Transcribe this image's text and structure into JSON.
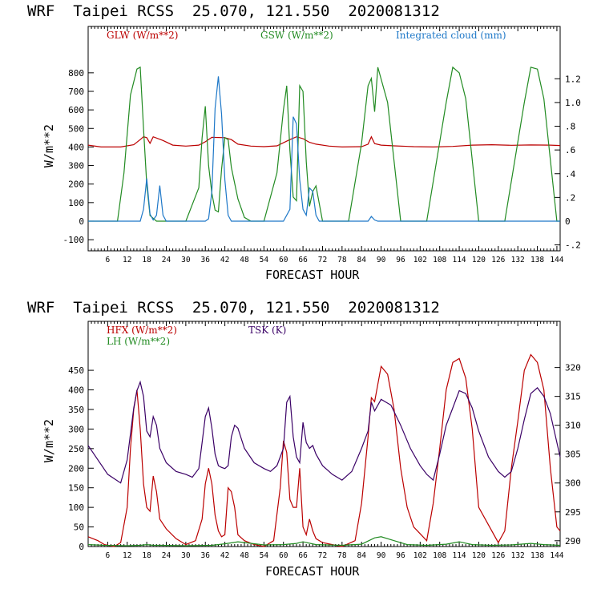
{
  "colors": {
    "glw": "#bb0000",
    "gsw": "#228b22",
    "cloud": "#1e78c8",
    "hfx": "#bb0000",
    "lh": "#228b22",
    "tsk": "#3a0066",
    "grid": "#000000"
  },
  "chart_data": [
    {
      "type": "line",
      "title": "WRF  Taipei RCSS  25.070, 121.550  2020081312",
      "xlabel": "FORECAST HOUR",
      "ylabel": "W/m**2",
      "xlim": [
        0,
        145
      ],
      "ylim": [
        -160,
        1050
      ],
      "xticks": [
        "6",
        "12",
        "18",
        "24",
        "30",
        "36",
        "42",
        "48",
        "54",
        "60",
        "66",
        "72",
        "78",
        "84",
        "90",
        "96",
        "102",
        "108",
        "114",
        "120",
        "126",
        "132",
        "138",
        "144"
      ],
      "yticks": [
        "-100",
        "0",
        "100",
        "200",
        "300",
        "400",
        "500",
        "600",
        "700",
        "800"
      ],
      "y2label": "Integrated cloud (mm)",
      "y2lim": [
        -0.25,
        1.641
      ],
      "y2ticks": [
        "-.2",
        "0",
        ".2",
        ".4",
        ".6",
        ".8",
        "1.0",
        "1.2"
      ],
      "legend": [
        "GLW (W/m**2)",
        "GSW (W/m**2)",
        "Integrated cloud (mm)"
      ],
      "series": [
        {
          "name": "GLW (W/m**2)",
          "axis": "left",
          "x": [
            0,
            4,
            10,
            14,
            16,
            17,
            18,
            19,
            20,
            23,
            26,
            30,
            34,
            36,
            38,
            42,
            44,
            46,
            50,
            54,
            58,
            62,
            64,
            66,
            68,
            70,
            74,
            78,
            84,
            86,
            87,
            88,
            90,
            94,
            100,
            106,
            112,
            118,
            124,
            130,
            136,
            142,
            145
          ],
          "y": [
            410,
            400,
            400,
            412,
            440,
            455,
            450,
            420,
            455,
            435,
            410,
            405,
            410,
            428,
            452,
            450,
            440,
            415,
            405,
            402,
            406,
            440,
            455,
            445,
            425,
            415,
            405,
            400,
            402,
            415,
            455,
            418,
            410,
            406,
            402,
            400,
            403,
            410,
            412,
            409,
            411,
            410,
            408
          ]
        },
        {
          "name": "GSW (W/m**2)",
          "axis": "left",
          "x": [
            0,
            9,
            11,
            13,
            15,
            16,
            17,
            18,
            19,
            21,
            24,
            30,
            34,
            35,
            36,
            37,
            38,
            39,
            40,
            41,
            42,
            43,
            44,
            46,
            48,
            50,
            54,
            58,
            60,
            61,
            62,
            63,
            64,
            65,
            66,
            67,
            68,
            69,
            70,
            72,
            80,
            84,
            86,
            87,
            88,
            89,
            92,
            96,
            104,
            110,
            112,
            114,
            116,
            120,
            128,
            134,
            136,
            138,
            140,
            144,
            145
          ],
          "y": [
            0,
            0,
            260,
            680,
            820,
            830,
            500,
            200,
            30,
            0,
            0,
            0,
            180,
            450,
            620,
            300,
            150,
            60,
            50,
            280,
            450,
            440,
            290,
            120,
            20,
            0,
            0,
            260,
            600,
            730,
            380,
            130,
            110,
            730,
            700,
            320,
            80,
            160,
            190,
            0,
            0,
            420,
            730,
            770,
            590,
            830,
            640,
            0,
            0,
            640,
            830,
            800,
            660,
            0,
            0,
            640,
            830,
            820,
            660,
            0,
            0
          ]
        },
        {
          "name": "Integrated cloud (mm)",
          "axis": "right",
          "x": [
            0,
            16,
            17,
            18,
            19,
            20,
            21,
            22,
            23,
            24,
            25,
            36,
            37,
            38,
            39,
            40,
            41,
            42,
            43,
            44,
            45,
            60,
            62,
            63,
            64,
            65,
            66,
            67,
            68,
            69,
            70,
            71,
            86,
            87,
            88,
            89,
            145
          ],
          "y": [
            0,
            0,
            0.1,
            0.36,
            0.06,
            0.01,
            0.05,
            0.3,
            0.05,
            0,
            0,
            0,
            0.02,
            0.25,
            0.95,
            1.22,
            0.9,
            0.35,
            0.05,
            0,
            0,
            0,
            0.1,
            0.88,
            0.82,
            0.35,
            0.1,
            0.05,
            0.28,
            0.25,
            0.05,
            0,
            0,
            0.04,
            0.01,
            0,
            0
          ]
        }
      ]
    },
    {
      "type": "line",
      "title": "WRF  Taipei RCSS  25.070, 121.550  2020081312",
      "xlabel": "FORECAST HOUR",
      "ylabel": "W/m**2",
      "xlim": [
        0,
        145
      ],
      "ylim": [
        0,
        575
      ],
      "xticks": [
        "6",
        "12",
        "18",
        "24",
        "30",
        "36",
        "42",
        "48",
        "54",
        "60",
        "66",
        "72",
        "78",
        "84",
        "90",
        "96",
        "102",
        "108",
        "114",
        "120",
        "126",
        "132",
        "138",
        "144"
      ],
      "yticks": [
        "0",
        "50",
        "100",
        "150",
        "200",
        "250",
        "300",
        "350",
        "400",
        "450"
      ],
      "y2label": "TSK (K)",
      "y2lim": [
        289.0,
        328.0
      ],
      "y2ticks": [
        "290",
        "295",
        "300",
        "305",
        "310",
        "315",
        "320"
      ],
      "legend": [
        "HFX (W/m**2)",
        "LH (W/m**2)",
        "TSK (K)"
      ],
      "series": [
        {
          "name": "HFX (W/m**2)",
          "axis": "left",
          "x": [
            0,
            3,
            5,
            8,
            10,
            12,
            13,
            14,
            15,
            16,
            17,
            18,
            19,
            20,
            21,
            22,
            24,
            27,
            30,
            33,
            35,
            36,
            37,
            38,
            39,
            40,
            41,
            42,
            43,
            44,
            45,
            46,
            48,
            51,
            54,
            57,
            59,
            60,
            61,
            62,
            63,
            64,
            65,
            66,
            67,
            68,
            69,
            70,
            72,
            75,
            78,
            82,
            84,
            86,
            87,
            88,
            90,
            92,
            94,
            96,
            98,
            100,
            104,
            106,
            108,
            110,
            112,
            114,
            116,
            118,
            120,
            126,
            128,
            130,
            132,
            134,
            136,
            138,
            140,
            142,
            144,
            145
          ],
          "y": [
            25,
            15,
            5,
            0,
            10,
            100,
            250,
            350,
            400,
            300,
            160,
            100,
            90,
            180,
            140,
            70,
            45,
            20,
            5,
            15,
            70,
            160,
            200,
            160,
            80,
            40,
            25,
            30,
            150,
            140,
            100,
            30,
            15,
            5,
            0,
            15,
            150,
            270,
            240,
            120,
            100,
            100,
            200,
            50,
            30,
            70,
            40,
            20,
            10,
            5,
            0,
            15,
            110,
            280,
            380,
            370,
            460,
            440,
            350,
            200,
            100,
            50,
            15,
            110,
            250,
            400,
            470,
            480,
            430,
            300,
            100,
            10,
            40,
            200,
            320,
            450,
            490,
            470,
            400,
            200,
            50,
            40
          ]
        },
        {
          "name": "LH (W/m**2)",
          "axis": "left",
          "x": [
            0,
            5,
            12,
            16,
            18,
            20,
            22,
            30,
            38,
            42,
            46,
            54,
            60,
            64,
            66,
            70,
            78,
            84,
            88,
            90,
            94,
            98,
            104,
            110,
            114,
            118,
            124,
            130,
            136,
            140,
            145
          ],
          "y": [
            5,
            3,
            2,
            3,
            5,
            3,
            3,
            2,
            3,
            7,
            12,
            4,
            5,
            8,
            12,
            5,
            3,
            6,
            22,
            25,
            15,
            5,
            3,
            6,
            12,
            5,
            3,
            4,
            8,
            5,
            3
          ]
        },
        {
          "name": "TSK (K)",
          "axis": "right",
          "x": [
            0,
            3,
            6,
            10,
            12,
            14,
            15,
            16,
            17,
            18,
            19,
            20,
            21,
            22,
            24,
            27,
            30,
            32,
            34,
            35,
            36,
            37,
            38,
            39,
            40,
            41,
            42,
            43,
            44,
            45,
            46,
            48,
            51,
            54,
            56,
            58,
            60,
            61,
            62,
            63,
            64,
            65,
            66,
            67,
            68,
            69,
            70,
            72,
            75,
            78,
            81,
            84,
            86,
            87,
            88,
            90,
            93,
            96,
            99,
            102,
            104,
            106,
            108,
            110,
            112,
            114,
            116,
            118,
            120,
            123,
            126,
            128,
            130,
            132,
            134,
            136,
            138,
            140,
            142,
            145
          ],
          "y": [
            306.5,
            304,
            301.5,
            300,
            304,
            313,
            316,
            317.5,
            315,
            309,
            308,
            311.5,
            310,
            306,
            303.5,
            302,
            301.5,
            301,
            302.5,
            307,
            311.5,
            313,
            309.5,
            305,
            303,
            302.7,
            302.5,
            303,
            308,
            310,
            309.5,
            306,
            303.5,
            302.5,
            302,
            303,
            306,
            314,
            315,
            308,
            304.5,
            303.5,
            310.5,
            307,
            306,
            306.5,
            305,
            303,
            301.5,
            300.5,
            302,
            306,
            309,
            314,
            312.5,
            314.5,
            313.5,
            310,
            306,
            303,
            301.5,
            300.5,
            305,
            310,
            313,
            316,
            315.5,
            313,
            309,
            304.5,
            302,
            301,
            302,
            306,
            311,
            315.5,
            316.5,
            315,
            312,
            304.5
          ]
        }
      ]
    }
  ]
}
